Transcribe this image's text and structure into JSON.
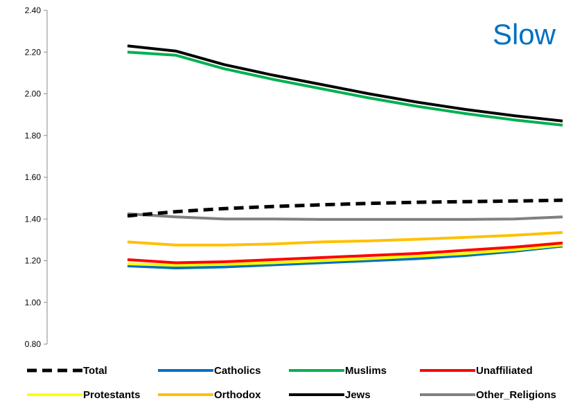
{
  "corner_label": "Slow",
  "chart_data": {
    "type": "line",
    "title": "",
    "xlabel": "",
    "ylabel": "",
    "ylim": [
      0.8,
      2.4
    ],
    "yticks": [
      "0.80",
      "1.00",
      "1.20",
      "1.40",
      "1.60",
      "1.80",
      "2.00",
      "2.20",
      "2.40"
    ],
    "x": [
      1,
      2,
      3,
      4,
      5,
      6,
      7,
      8,
      9,
      10
    ],
    "grid": false,
    "legend_position": "bottom",
    "series": [
      {
        "name": "Total",
        "color": "#000000",
        "dashed": true,
        "values": [
          1.415,
          1.435,
          1.45,
          1.46,
          1.468,
          1.475,
          1.48,
          1.483,
          1.486,
          1.49
        ]
      },
      {
        "name": "Catholics",
        "color": "#0070c0",
        "dashed": false,
        "values": [
          1.175,
          1.165,
          1.17,
          1.18,
          1.19,
          1.2,
          1.21,
          1.225,
          1.245,
          1.27
        ]
      },
      {
        "name": "Muslims",
        "color": "#00b050",
        "dashed": false,
        "values": [
          2.2,
          2.185,
          2.12,
          2.07,
          2.025,
          1.98,
          1.94,
          1.905,
          1.875,
          1.85
        ]
      },
      {
        "name": "Unaffiliated",
        "color": "#ff0000",
        "dashed": false,
        "values": [
          1.205,
          1.19,
          1.195,
          1.205,
          1.215,
          1.225,
          1.235,
          1.25,
          1.265,
          1.285
        ]
      },
      {
        "name": "Protestants",
        "color": "#ffff00",
        "dashed": false,
        "values": [
          1.185,
          1.178,
          1.182,
          1.19,
          1.2,
          1.21,
          1.222,
          1.235,
          1.252,
          1.275
        ]
      },
      {
        "name": "Orthodox",
        "color": "#ffc000",
        "dashed": false,
        "values": [
          1.29,
          1.275,
          1.275,
          1.28,
          1.29,
          1.295,
          1.303,
          1.312,
          1.322,
          1.335
        ]
      },
      {
        "name": "Jews",
        "color": "#000000",
        "dashed": false,
        "values": [
          2.23,
          2.205,
          2.14,
          2.09,
          2.045,
          2.0,
          1.96,
          1.925,
          1.895,
          1.87
        ]
      },
      {
        "name": "Other_Religions",
        "color": "#808080",
        "dashed": false,
        "values": [
          1.425,
          1.41,
          1.4,
          1.4,
          1.398,
          1.398,
          1.398,
          1.398,
          1.4,
          1.41
        ]
      }
    ]
  }
}
